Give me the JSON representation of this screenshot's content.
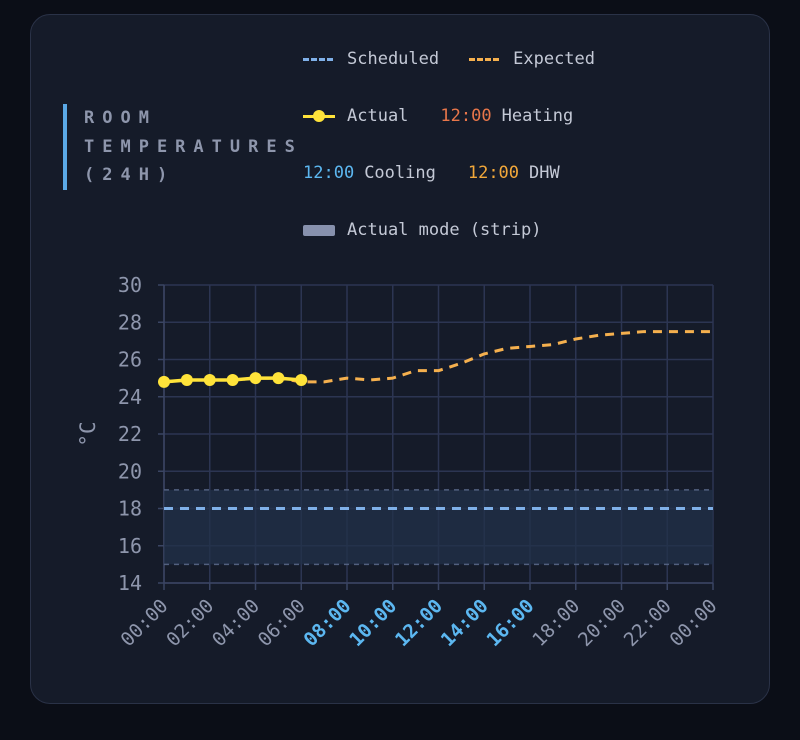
{
  "card": {
    "title": "ROOM TEMPERATURES (24H)"
  },
  "legend": {
    "scheduled": {
      "label": "Scheduled",
      "color": "#7fb0e8"
    },
    "expected": {
      "label": "Expected",
      "color": "#f5b04e"
    },
    "actual": {
      "label": "Actual",
      "color": "#ffe33a"
    },
    "heating": {
      "time": "12:00",
      "label": "Heating",
      "color": "#e8764a"
    },
    "cooling": {
      "time": "12:00",
      "label": "Cooling",
      "color": "#5cb7f0"
    },
    "dhw": {
      "time": "12:00",
      "label": "DHW",
      "color": "#f2a83a"
    },
    "strip": {
      "label": "Actual mode (strip)",
      "color": "#8791ad"
    }
  },
  "chart_data": {
    "type": "line",
    "title": "ROOM TEMPERATURES (24H)",
    "ylabel": "°C",
    "xlabel": "",
    "ylim": [
      14,
      30
    ],
    "yticks": [
      14,
      16,
      18,
      20,
      22,
      24,
      26,
      28,
      30
    ],
    "xlim": [
      0,
      24
    ],
    "xticks": [
      {
        "label": "00:00",
        "hour": 0,
        "highlight": false
      },
      {
        "label": "02:00",
        "hour": 2,
        "highlight": false
      },
      {
        "label": "04:00",
        "hour": 4,
        "highlight": false
      },
      {
        "label": "06:00",
        "hour": 6,
        "highlight": false
      },
      {
        "label": "08:00",
        "hour": 8,
        "highlight": true
      },
      {
        "label": "10:00",
        "hour": 10,
        "highlight": true
      },
      {
        "label": "12:00",
        "hour": 12,
        "highlight": true
      },
      {
        "label": "14:00",
        "hour": 14,
        "highlight": true
      },
      {
        "label": "16:00",
        "hour": 16,
        "highlight": true
      },
      {
        "label": "18:00",
        "hour": 18,
        "highlight": false
      },
      {
        "label": "20:00",
        "hour": 20,
        "highlight": false
      },
      {
        "label": "22:00",
        "hour": 22,
        "highlight": false
      },
      {
        "label": "00:00",
        "hour": 24,
        "highlight": false
      }
    ],
    "highlight_color": "#5cb7f0",
    "grid": true,
    "scheduled_band": {
      "low": 15,
      "high": 19
    },
    "series": [
      {
        "name": "Scheduled",
        "style": "dashed",
        "color": "#7fb0e8",
        "x": [
          0,
          24
        ],
        "y": [
          18,
          18
        ]
      },
      {
        "name": "Expected",
        "style": "dashed",
        "color": "#f5b04e",
        "x": [
          0,
          1,
          2,
          3,
          4,
          5,
          6,
          7,
          8,
          9,
          10,
          11,
          12,
          13,
          14,
          15,
          16,
          17,
          18,
          19,
          20,
          21,
          22,
          23,
          24
        ],
        "y": [
          24.8,
          24.9,
          24.9,
          24.9,
          25.0,
          25.0,
          24.8,
          24.8,
          25.0,
          24.9,
          25.0,
          25.4,
          25.4,
          25.8,
          26.3,
          26.6,
          26.7,
          26.8,
          27.1,
          27.3,
          27.4,
          27.5,
          27.5,
          27.5,
          27.5
        ]
      },
      {
        "name": "Actual",
        "style": "solid",
        "color": "#ffe33a",
        "x": [
          0,
          1,
          2,
          3,
          4,
          5,
          6
        ],
        "y": [
          24.8,
          24.9,
          24.9,
          24.9,
          25.0,
          25.0,
          24.9
        ]
      }
    ]
  }
}
